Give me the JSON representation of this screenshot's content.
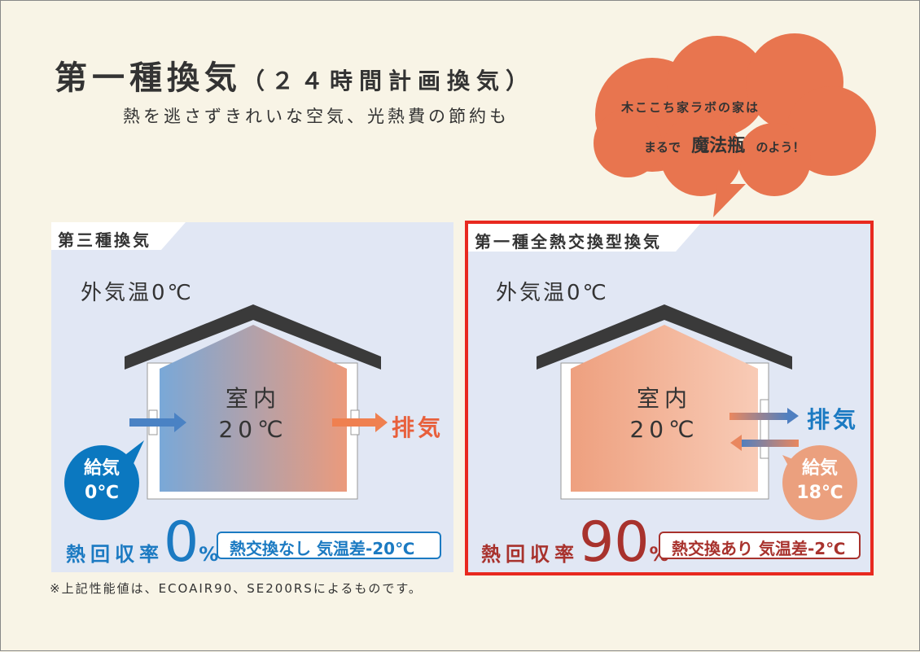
{
  "header": {
    "title": "第一種換気",
    "title_sub": "（２４時間計画換気）",
    "subtitle": "熱を逃さずきれいな空気、光熱費の節約も"
  },
  "cloud": {
    "line1": "木ここち家ラボの家は",
    "line2_pre": "まるで",
    "line2_em": "魔法瓶",
    "line2_post": "のよう！",
    "color": "#e8754f"
  },
  "left": {
    "tab": "第三種換気",
    "outside_temp": "外気温0℃",
    "room_label": "室内",
    "room_temp": "20℃",
    "exhaust": "排気",
    "supply_label": "給気",
    "supply_temp": "0℃",
    "rate_label": "熱回収率",
    "rate_value": "0",
    "rate_unit": "%",
    "note": "熱交換なし 気温差-20℃",
    "accent": "#1b7ac2"
  },
  "right": {
    "tab": "第一種全熱交換型換気",
    "outside_temp": "外気温0℃",
    "room_label": "室内",
    "room_temp": "20℃",
    "exhaust": "排気",
    "supply_label": "給気",
    "supply_temp": "18℃",
    "rate_label": "熱回収率",
    "rate_value": "90",
    "rate_unit": "%",
    "note": "熱交換あり 気温差-2℃",
    "accent": "#a8322d",
    "highlight": "#e8291f"
  },
  "footnote": "※上記性能値は、ECOAIR90、SE200RSによるものです。"
}
